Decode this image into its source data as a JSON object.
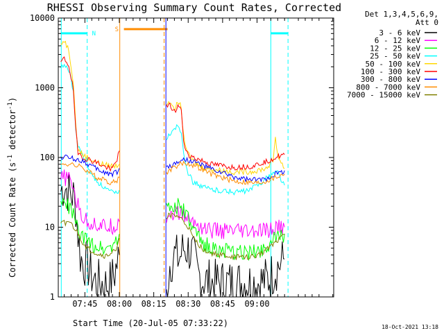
{
  "chart_data": {
    "type": "line",
    "title": "RHESSI Observing Summary Count Rates, Corrected",
    "xlabel": "Start Time (20-Jul-05 07:33:22)",
    "ylabel_main": "Corrected Count Rate (s",
    "ylabel_sup1": "-1",
    "ylabel_mid": " detector",
    "ylabel_sup2": "-1",
    "ylabel_end": ")",
    "yscale": "log",
    "ylim": [
      1,
      10000
    ],
    "xlim_min": [
      33.4,
      153.4
    ],
    "x_ticks": [
      {
        "t": 45,
        "label": "07:45"
      },
      {
        "t": 60,
        "label": "08:00"
      },
      {
        "t": 75,
        "label": "08:15"
      },
      {
        "t": 90,
        "label": "08:30"
      },
      {
        "t": 105,
        "label": "08:45"
      },
      {
        "t": 120,
        "label": "09:00"
      }
    ],
    "y_ticks": [
      {
        "v": 1,
        "label": "1"
      },
      {
        "v": 10,
        "label": "10"
      },
      {
        "v": 100,
        "label": "100"
      },
      {
        "v": 1000,
        "label": "1000"
      },
      {
        "v": 10000,
        "label": "10000"
      }
    ],
    "legend_header": [
      "Det 1,3,4,5,6,9,",
      "Att 0"
    ],
    "legend_position": "top-right",
    "annotations": {
      "night": "N",
      "saa": "S"
    },
    "footer_timestamp": "18-Oct-2021 13:18",
    "series": [
      {
        "name": "3 - 6 keV",
        "color": "#000000",
        "points": [
          [
            34.5,
            33
          ],
          [
            36,
            40
          ],
          [
            38,
            32
          ],
          [
            40,
            28
          ],
          [
            41,
            20
          ],
          [
            42,
            8
          ],
          [
            43,
            4
          ],
          [
            44,
            3
          ],
          [
            46,
            3
          ],
          [
            48,
            2
          ],
          [
            50,
            1.6
          ],
          [
            52,
            1.6
          ],
          [
            54,
            1.5
          ],
          [
            56,
            1.6
          ],
          [
            58,
            2.2
          ],
          [
            60,
            4
          ],
          [
            80.5,
            1
          ],
          [
            82,
            3
          ],
          [
            84,
            4
          ],
          [
            86,
            3.5
          ],
          [
            88,
            5
          ],
          [
            90,
            4.8
          ],
          [
            92,
            4
          ],
          [
            94,
            2.2
          ],
          [
            96,
            1.8
          ],
          [
            100,
            1.6
          ],
          [
            110,
            1.6
          ],
          [
            120,
            1.6
          ],
          [
            125,
            1.8
          ],
          [
            128,
            2.5
          ],
          [
            130,
            3
          ],
          [
            132,
            3.5
          ]
        ]
      },
      {
        "name": "6 - 12 keV",
        "color": "#ff00ff",
        "points": [
          [
            34.5,
            47
          ],
          [
            36,
            52
          ],
          [
            38,
            48
          ],
          [
            40,
            40
          ],
          [
            41,
            25
          ],
          [
            42,
            20
          ],
          [
            43,
            17
          ],
          [
            44,
            14
          ],
          [
            46,
            12
          ],
          [
            50,
            11
          ],
          [
            54,
            10
          ],
          [
            58,
            10.5
          ],
          [
            60,
            12
          ],
          [
            80.5,
            14
          ],
          [
            82,
            16
          ],
          [
            86,
            16
          ],
          [
            88,
            15
          ],
          [
            90,
            13
          ],
          [
            92,
            12
          ],
          [
            96,
            10
          ],
          [
            100,
            9
          ],
          [
            110,
            8.5
          ],
          [
            120,
            8.5
          ],
          [
            126,
            9
          ],
          [
            130,
            10
          ],
          [
            132,
            10
          ]
        ]
      },
      {
        "name": "12 - 25 keV",
        "color": "#00ff00",
        "points": [
          [
            34.5,
            23
          ],
          [
            36,
            21
          ],
          [
            38,
            20
          ],
          [
            40,
            15
          ],
          [
            42,
            9
          ],
          [
            44,
            7
          ],
          [
            46,
            6
          ],
          [
            50,
            5.5
          ],
          [
            54,
            5
          ],
          [
            58,
            6
          ],
          [
            60,
            8
          ],
          [
            80.5,
            18
          ],
          [
            82,
            20
          ],
          [
            86,
            20
          ],
          [
            88,
            17
          ],
          [
            90,
            13
          ],
          [
            92,
            9
          ],
          [
            96,
            6
          ],
          [
            100,
            5
          ],
          [
            110,
            4.2
          ],
          [
            120,
            4.5
          ],
          [
            126,
            6
          ],
          [
            130,
            7.5
          ],
          [
            132,
            8
          ]
        ]
      },
      {
        "name": "25 - 50 keV",
        "color": "#00ffff",
        "points": [
          [
            34.5,
            1900
          ],
          [
            36,
            2200
          ],
          [
            38,
            1800
          ],
          [
            40,
            900
          ],
          [
            41,
            250
          ],
          [
            42,
            140
          ],
          [
            44,
            110
          ],
          [
            46,
            80
          ],
          [
            48,
            55
          ],
          [
            52,
            40
          ],
          [
            56,
            32
          ],
          [
            58,
            30
          ],
          [
            60,
            34
          ],
          [
            80.5,
            170
          ],
          [
            82,
            220
          ],
          [
            84,
            270
          ],
          [
            86,
            280
          ],
          [
            87,
            230
          ],
          [
            88,
            120
          ],
          [
            90,
            60
          ],
          [
            92,
            45
          ],
          [
            96,
            38
          ],
          [
            100,
            35
          ],
          [
            110,
            32
          ],
          [
            116,
            33
          ],
          [
            120,
            40
          ],
          [
            124,
            50
          ],
          [
            127,
            60
          ],
          [
            129,
            62
          ],
          [
            131,
            45
          ],
          [
            132,
            40
          ]
        ]
      },
      {
        "name": "50 - 100 keV",
        "color": "#ffd700",
        "points": [
          [
            34.5,
            4200
          ],
          [
            36,
            4800
          ],
          [
            38,
            3500
          ],
          [
            40,
            1200
          ],
          [
            41,
            300
          ],
          [
            42,
            130
          ],
          [
            44,
            110
          ],
          [
            46,
            100
          ],
          [
            50,
            85
          ],
          [
            54,
            78
          ],
          [
            58,
            75
          ],
          [
            60,
            80
          ],
          [
            80.5,
            600
          ],
          [
            82,
            650
          ],
          [
            84,
            520
          ],
          [
            86,
            620
          ],
          [
            87,
            500
          ],
          [
            88,
            200
          ],
          [
            90,
            110
          ],
          [
            92,
            90
          ],
          [
            96,
            72
          ],
          [
            100,
            68
          ],
          [
            110,
            62
          ],
          [
            118,
            63
          ],
          [
            124,
            70
          ],
          [
            127,
            90
          ],
          [
            128,
            200
          ],
          [
            129,
            110
          ],
          [
            130,
            90
          ],
          [
            132,
            70
          ]
        ]
      },
      {
        "name": "100 - 300 keV",
        "color": "#ff0000",
        "points": [
          [
            34.5,
            2300
          ],
          [
            36,
            2600
          ],
          [
            38,
            2100
          ],
          [
            40,
            900
          ],
          [
            41,
            250
          ],
          [
            42,
            120
          ],
          [
            44,
            100
          ],
          [
            46,
            95
          ],
          [
            50,
            85
          ],
          [
            54,
            72
          ],
          [
            57,
            70
          ],
          [
            59,
            95
          ],
          [
            60,
            125
          ],
          [
            80.5,
            520
          ],
          [
            82,
            560
          ],
          [
            84,
            450
          ],
          [
            86,
            560
          ],
          [
            87,
            480
          ],
          [
            88,
            160
          ],
          [
            90,
            110
          ],
          [
            92,
            100
          ],
          [
            96,
            90
          ],
          [
            100,
            80
          ],
          [
            110,
            72
          ],
          [
            118,
            75
          ],
          [
            124,
            88
          ],
          [
            128,
            100
          ],
          [
            132,
            110
          ]
        ]
      },
      {
        "name": "300 - 800 keV",
        "color": "#0000ff",
        "points": [
          [
            34.5,
            100
          ],
          [
            36,
            102
          ],
          [
            38,
            100
          ],
          [
            40,
            96
          ],
          [
            42,
            92
          ],
          [
            44,
            90
          ],
          [
            46,
            82
          ],
          [
            50,
            68
          ],
          [
            54,
            60
          ],
          [
            57,
            58
          ],
          [
            59,
            62
          ],
          [
            60,
            70
          ],
          [
            80.5,
            72
          ],
          [
            82,
            75
          ],
          [
            84,
            80
          ],
          [
            86,
            90
          ],
          [
            88,
            92
          ],
          [
            90,
            92
          ],
          [
            92,
            88
          ],
          [
            96,
            78
          ],
          [
            100,
            68
          ],
          [
            106,
            58
          ],
          [
            110,
            52
          ],
          [
            116,
            48
          ],
          [
            120,
            47
          ],
          [
            124,
            50
          ],
          [
            128,
            58
          ],
          [
            132,
            65
          ]
        ]
      },
      {
        "name": "800 - 7000 keV",
        "color": "#ff8c00",
        "points": [
          [
            34.5,
            78
          ],
          [
            36,
            82
          ],
          [
            38,
            80
          ],
          [
            40,
            78
          ],
          [
            42,
            75
          ],
          [
            44,
            72
          ],
          [
            46,
            65
          ],
          [
            50,
            52
          ],
          [
            54,
            46
          ],
          [
            57,
            44
          ],
          [
            59,
            47
          ],
          [
            60,
            52
          ],
          [
            80.5,
            62
          ],
          [
            82,
            66
          ],
          [
            84,
            72
          ],
          [
            86,
            80
          ],
          [
            88,
            83
          ],
          [
            90,
            82
          ],
          [
            92,
            78
          ],
          [
            96,
            68
          ],
          [
            100,
            58
          ],
          [
            106,
            50
          ],
          [
            110,
            46
          ],
          [
            116,
            44
          ],
          [
            120,
            43
          ],
          [
            124,
            46
          ],
          [
            128,
            52
          ],
          [
            132,
            58
          ]
        ]
      },
      {
        "name": "7000 - 15000 keV",
        "color": "#808000",
        "points": [
          [
            34.5,
            11
          ],
          [
            36,
            11.5
          ],
          [
            38,
            12
          ],
          [
            40,
            10
          ],
          [
            42,
            8
          ],
          [
            44,
            6
          ],
          [
            46,
            5
          ],
          [
            50,
            4.2
          ],
          [
            54,
            3.8
          ],
          [
            58,
            4.5
          ],
          [
            60,
            7
          ],
          [
            80.5,
            14
          ],
          [
            82,
            15
          ],
          [
            86,
            14
          ],
          [
            88,
            12
          ],
          [
            90,
            10
          ],
          [
            92,
            7
          ],
          [
            96,
            5
          ],
          [
            100,
            4.2
          ],
          [
            110,
            3.7
          ],
          [
            120,
            3.8
          ],
          [
            126,
            5.5
          ],
          [
            130,
            7
          ],
          [
            132,
            8
          ]
        ]
      }
    ],
    "orbit_markers": {
      "night_bars": [
        [
          34.5,
          46
        ],
        [
          126,
          133.5
        ]
      ],
      "saa_bar": [
        62,
        81
      ],
      "solid_lines": [
        {
          "t": 34.7,
          "color": "#00ffff"
        },
        {
          "t": 60.2,
          "color": "#ff8c00"
        },
        {
          "t": 80.3,
          "color": "#0000ff"
        },
        {
          "t": 126,
          "color": "#00ffff"
        }
      ],
      "dashed_lines": [
        {
          "t": 46,
          "color": "#00ffff"
        },
        {
          "t": 79.5,
          "color": "#ff8c00"
        },
        {
          "t": 133.5,
          "color": "#00ffff"
        }
      ]
    }
  }
}
